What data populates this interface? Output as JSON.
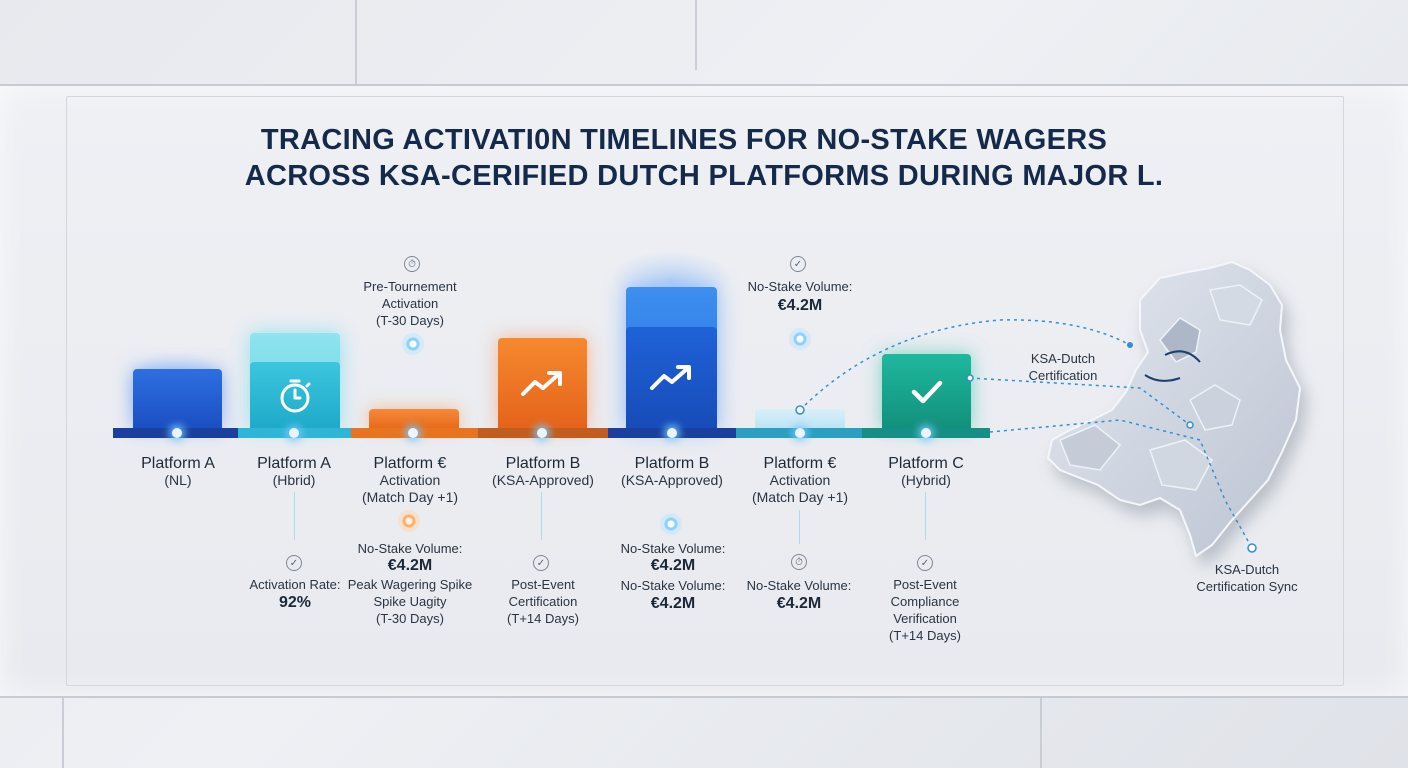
{
  "title": {
    "line1": "TRACING ACTIVATI0N TIMELINES FOR NO-STAKE WAGERS",
    "line2": "ACROSS KSA-CERIFIED DUTCH PLATFORMS DURING MAJOR L."
  },
  "platforms": [
    {
      "name": "Platform A",
      "sub": "(NL)"
    },
    {
      "name": "Platform A",
      "sub": "(Hbrid)"
    },
    {
      "name": "Platform €",
      "sub": "Activation",
      "sub2": "(Match Day +1)"
    },
    {
      "name": "Platform B",
      "sub": "(KSA-Approved)"
    },
    {
      "name": "Platform B",
      "sub": "(KSA-Approved)"
    },
    {
      "name": "Platform €",
      "sub": "Activation",
      "sub2": "(Match Day +1)"
    },
    {
      "name": "Platform C",
      "sub": "(Hybrid)"
    }
  ],
  "above": {
    "pre_tournament": [
      "Pre-Tournement",
      "Activation",
      "(T-30 Days)"
    ],
    "volume_label": "No-Stake Volume:",
    "volume_value": "€4.2M"
  },
  "below": {
    "col1": {
      "label": "Activation Rate:",
      "value": "92%"
    },
    "col2": {
      "label": "No-Stake Volume:",
      "value": "€4.2M",
      "extra": [
        "Peak Wagering Spike",
        "Spike Uagity",
        "(T-30 Days)"
      ]
    },
    "col3": [
      "Post-Event",
      "Certification",
      "(T+14 Days)"
    ],
    "col4": {
      "label": "No-Stake Volume:",
      "value": "€4.2M",
      "label2": "No-Stake Volume:",
      "value2": "€4.2M"
    },
    "col5": {
      "label": "No-Stake Volume:",
      "value": "€4.2M"
    },
    "col6": [
      "Post-Event",
      "Compliance",
      "Verification",
      "(T+14 Days)"
    ]
  },
  "map": {
    "label1": [
      "KSA-Dutch",
      "Certification"
    ],
    "label2": [
      "KSA-Dutch",
      "Certification Sync"
    ]
  },
  "icons": [
    "stopwatch-icon",
    "trend-up-icon",
    "trend-up-icon",
    "checkmark-icon",
    "check-circle-icon",
    "stopwatch-small-icon"
  ],
  "colors": {
    "blue": "#1f5fd6",
    "cyan": "#2fc6dc",
    "orange": "#f07a22",
    "teal": "#16a08a",
    "title": "#152a4a"
  }
}
